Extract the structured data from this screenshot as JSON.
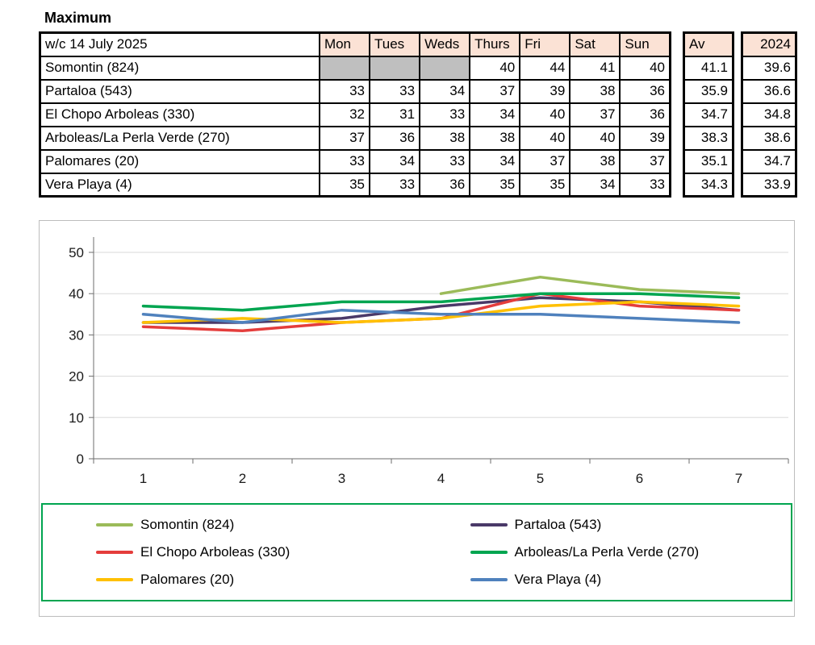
{
  "page": {
    "title": "Maximum"
  },
  "table": {
    "week_label": "w/c 14 July 2025",
    "day_headers": [
      "Mon",
      "Tues",
      "Weds",
      "Thurs",
      "Fri",
      "Sat",
      "Sun"
    ],
    "avg_header": "Av",
    "prev_year_header": "2024",
    "rows": [
      {
        "name": "Somontin (824)",
        "values": [
          null,
          null,
          null,
          40,
          44,
          41,
          40
        ],
        "avg": "41.1",
        "prev": "39.6"
      },
      {
        "name": "Partaloa (543)",
        "values": [
          33,
          33,
          34,
          37,
          39,
          38,
          36
        ],
        "avg": "35.9",
        "prev": "36.6"
      },
      {
        "name": "El Chopo  Arboleas (330)",
        "values": [
          32,
          31,
          33,
          34,
          40,
          37,
          36
        ],
        "avg": "34.7",
        "prev": "34.8"
      },
      {
        "name": "Arboleas/La Perla Verde (270)",
        "values": [
          37,
          36,
          38,
          38,
          40,
          40,
          39
        ],
        "avg": "38.3",
        "prev": "38.6"
      },
      {
        "name": "Palomares (20)",
        "values": [
          33,
          34,
          33,
          34,
          37,
          38,
          37
        ],
        "avg": "35.1",
        "prev": "34.7"
      },
      {
        "name": "Vera Playa (4)",
        "values": [
          35,
          33,
          36,
          35,
          35,
          34,
          33
        ],
        "avg": "34.3",
        "prev": "33.9"
      }
    ]
  },
  "chart_data": {
    "type": "line",
    "x": [
      1,
      2,
      3,
      4,
      5,
      6,
      7
    ],
    "xlabel": "",
    "ylabel": "",
    "ylim": [
      0,
      50
    ],
    "yticks": [
      0,
      10,
      20,
      30,
      40,
      50
    ],
    "grid": true,
    "legend_position": "bottom",
    "legend_columns": 2,
    "series": [
      {
        "name": "Somontin (824)",
        "color": "#9BBB59",
        "values": [
          null,
          null,
          null,
          40,
          44,
          41,
          40
        ]
      },
      {
        "name": "Partaloa (543)",
        "color": "#4A3968",
        "values": [
          33,
          33,
          34,
          37,
          39,
          38,
          36
        ]
      },
      {
        "name": "El Chopo  Arboleas (330)",
        "color": "#E43D3C",
        "values": [
          32,
          31,
          33,
          34,
          40,
          37,
          36
        ]
      },
      {
        "name": "Arboleas/La Perla Verde (270)",
        "color": "#00A550",
        "values": [
          37,
          36,
          38,
          38,
          40,
          40,
          39
        ]
      },
      {
        "name": "Palomares (20)",
        "color": "#FFC000",
        "values": [
          33,
          34,
          33,
          34,
          37,
          38,
          37
        ]
      },
      {
        "name": "Vera Playa (4)",
        "color": "#4F81BD",
        "values": [
          35,
          33,
          36,
          35,
          35,
          34,
          33
        ]
      }
    ]
  },
  "colors": {
    "header_fill": "#FBE2D5",
    "blank_fill": "#BFBFBF",
    "legend_border": "#00A550",
    "gridline": "#D9D9D9",
    "axis": "#6E6E6E",
    "chart_border": "#BDBDBD"
  }
}
